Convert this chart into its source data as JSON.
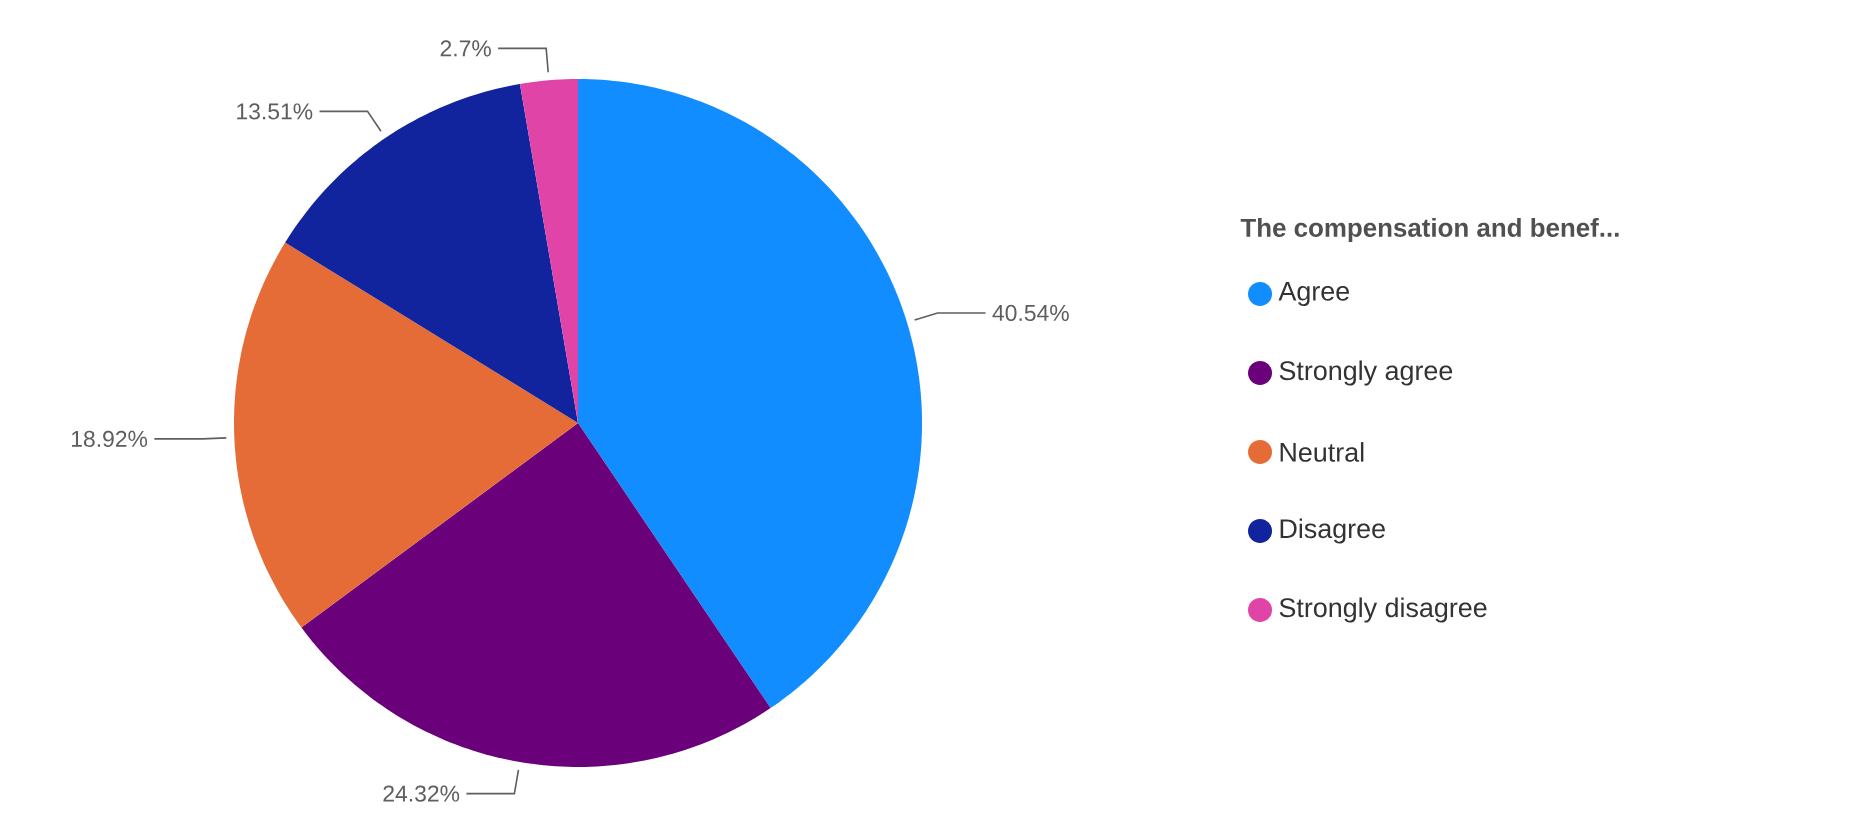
{
  "chart_data": {
    "type": "pie",
    "legend_title": "The compensation and benef...",
    "categories": [
      "Agree",
      "Strongly agree",
      "Neutral",
      "Disagree",
      "Strongly disagree"
    ],
    "values": [
      40.54,
      24.32,
      18.92,
      13.51,
      2.7
    ],
    "value_labels": [
      "40.54%",
      "24.32%",
      "18.92%",
      "13.51%",
      "2.7%"
    ],
    "colors": [
      "#118dff",
      "#6b007b",
      "#e66c37",
      "#12239e",
      "#e044a7"
    ],
    "legend": "right"
  }
}
